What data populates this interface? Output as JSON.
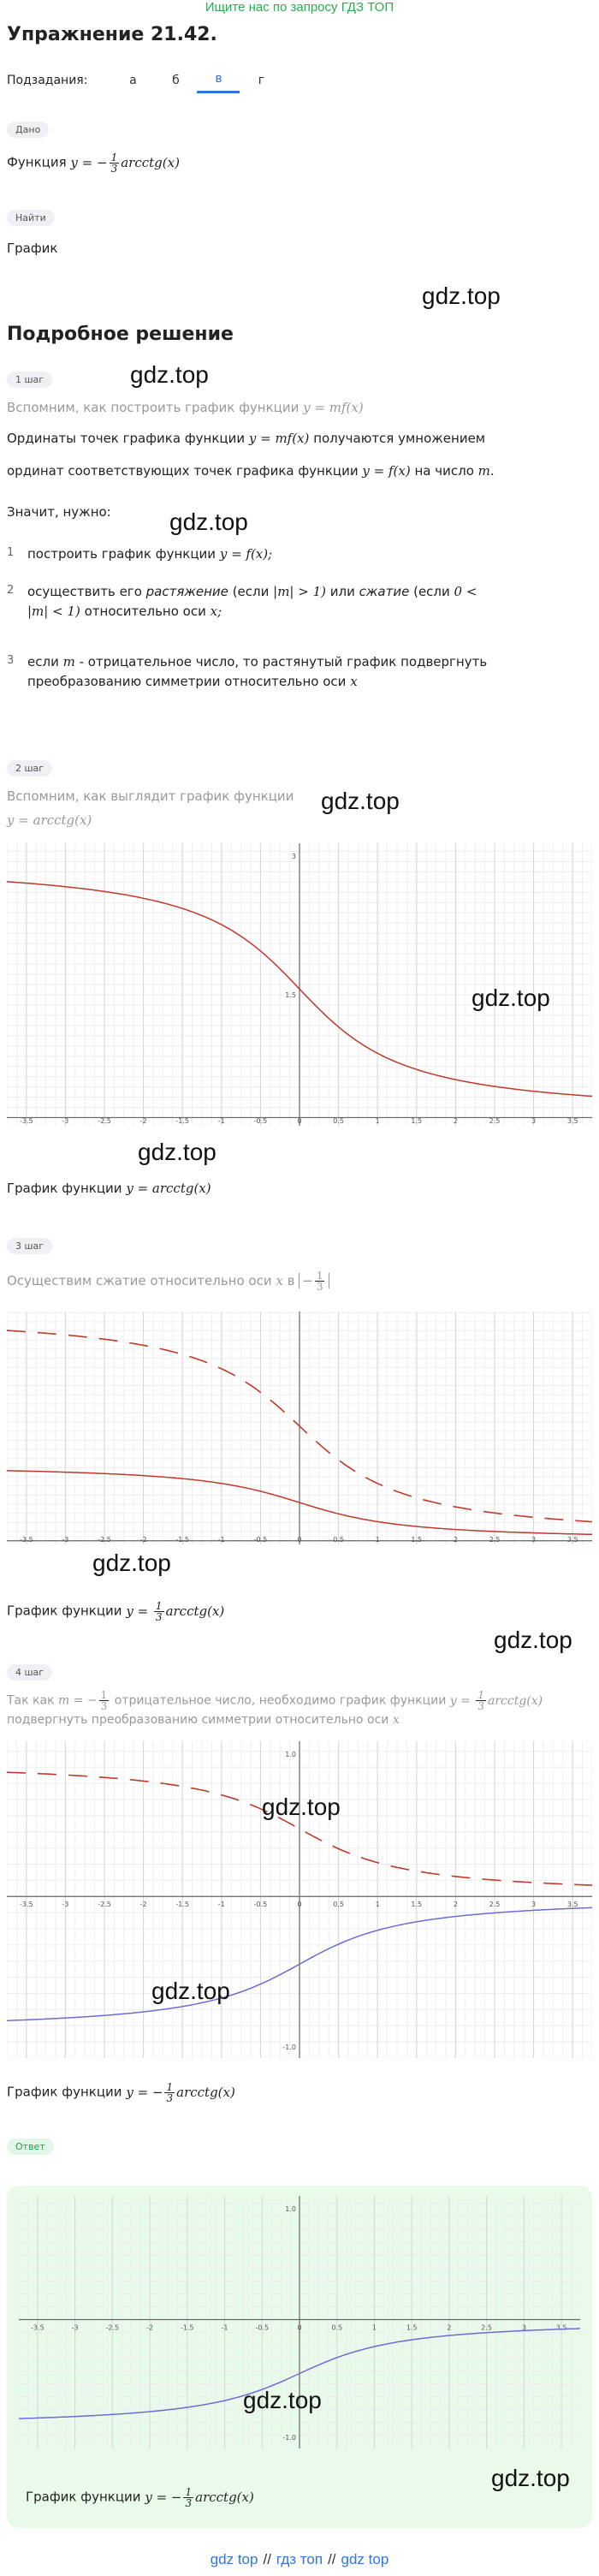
{
  "banner": "Ищите нас по запросу ГДЗ ТОП",
  "title": "Упражнение 21.42.",
  "subtasks": {
    "label": "Подзадания:",
    "tabs": [
      "а",
      "б",
      "в",
      "г"
    ]
  },
  "given": {
    "pill": "Дано",
    "text": "Функция"
  },
  "find": {
    "pill": "Найти",
    "text": "График"
  },
  "watermark": "gdz.top",
  "solution_title": "Подробное решение",
  "step1": {
    "pill": "1 шаг",
    "recall": "Вспомним, как построить график функции",
    "recall_math": "y = mf(x)",
    "p1a": "Ординаты точек графика функции",
    "p1m1": "y = mf(x)",
    "p1b": "получаются умножением",
    "p2a": "ординат соответствующих точек графика функции",
    "p2m": "y = f(x)",
    "p2b": "на число",
    "p2m2": "m.",
    "need": "Значит, нужно:",
    "items": [
      {
        "n": "1",
        "a": "построить график функции",
        "m": "y = f(x);"
      },
      {
        "n": "2",
        "a": "осуществить его",
        "b": "растяжение",
        "c": "(если",
        "m1": "|m|  >  1)",
        "d": "или",
        "e": "сжатие",
        "f": "(если",
        "m2": "0  <",
        "g": "|m|  <  1)",
        "h": "относительно оси",
        "m3": "x;"
      },
      {
        "n": "3",
        "a": "если",
        "m": "m",
        "b": "- отрицательное число, то растянутый график подвергнуть",
        "c": "преобразованию симметрии относительно оси",
        "m2": "x"
      }
    ]
  },
  "step2": {
    "pill": "2 шаг",
    "recall": "Вспомним, как выглядит график функции",
    "math": "y = arcctg(x)",
    "caption": "График функции",
    "caption_math": "y = arcctg(x)"
  },
  "step3": {
    "pill": "3 шаг",
    "text": "Осуществим сжатие относительно оси",
    "axis": "x",
    "in": "в",
    "caption": "График функции",
    "caption_math_pre": "y =",
    "caption_math_post": "arcctg(x)"
  },
  "step4": {
    "pill": "4 шаг",
    "a": "Так как",
    "m": "m = −",
    "b": "отрицательное число, необходимо график функции",
    "m2": "y =",
    "m2post": "arcctg(x)",
    "c": "подвергнуть преобразованию симметрии относительно оси",
    "m3": "x",
    "caption": "График функции",
    "caption_math_pre": "y = −",
    "caption_math_post": "arcctg(x)"
  },
  "answer": {
    "pill": "Ответ",
    "caption": "График функции",
    "caption_math_pre": "y = −",
    "caption_math_post": "arcctg(x)"
  },
  "fraction": {
    "num": "1",
    "den": "3"
  },
  "footer": {
    "a": "gdz top",
    "b": "гдз топ",
    "c": "gdz top",
    "sep": "//"
  },
  "colors": {
    "red": "#c0392b",
    "blue": "#6c6cd4",
    "green": "#24b24b",
    "accent": "#2b78e4"
  },
  "charts": {
    "c1": {
      "xticks": [
        "-3.5",
        "-3",
        "-2.5",
        "-2",
        "-1.5",
        "-1",
        "-0.5",
        "0",
        "0.5",
        "1",
        "1.5",
        "2",
        "2.5",
        "3",
        "3.5"
      ],
      "ymid": "1.5",
      "ytop": "3"
    },
    "c2": {
      "xticks": [
        "-3.5",
        "-3",
        "-2.5",
        "-2",
        "-1.5",
        "-1",
        "-0.5",
        "0",
        "0.5",
        "1",
        "1.5",
        "2",
        "2.5",
        "3",
        "3.5"
      ]
    },
    "c3": {
      "xticks": [
        "-3.5",
        "-3",
        "-2.5",
        "-2",
        "-1.5",
        "-1",
        "-0.5",
        "0",
        "0.5",
        "1",
        "1.5",
        "2",
        "2.5",
        "3",
        "3.5"
      ],
      "ytop": "1.0",
      "ybot": "-1.0"
    },
    "c4": {
      "xticks": [
        "-3.5",
        "-3",
        "-2.5",
        "-2",
        "-1.5",
        "-1",
        "-0.5",
        "0",
        "0.5",
        "1",
        "1.5",
        "2",
        "2.5",
        "3",
        "3.5"
      ],
      "ytop": "1.0",
      "ybot": "-1.0"
    }
  }
}
